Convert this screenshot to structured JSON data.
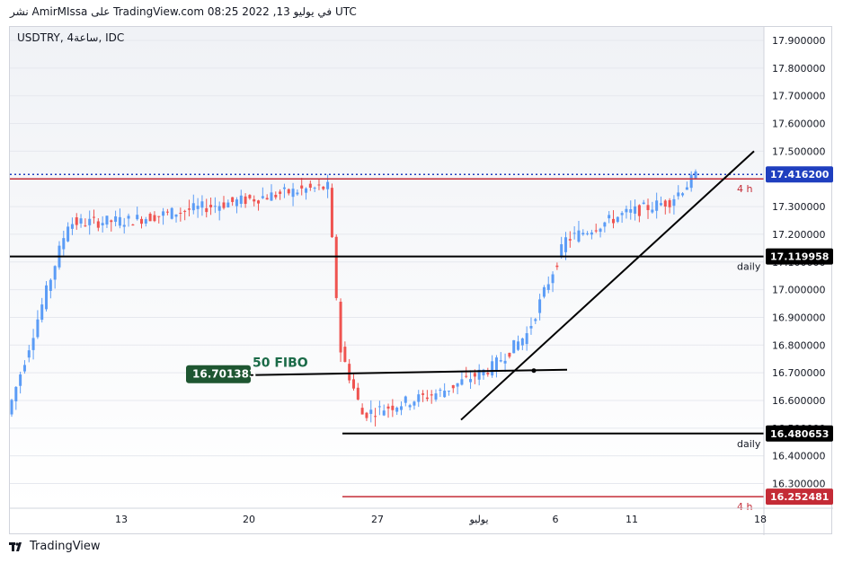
{
  "header": {
    "publish_line": "نشر AmirMIssa على TradingView.com في يوليو 13, 2022 08:25 UTC"
  },
  "symbol_line": "USDTRY, 4ساعة, IDC",
  "footer": {
    "brand": "TradingView"
  },
  "colors": {
    "up": "#5b9cf6",
    "down": "#ef5350",
    "red_level": "#c42b36",
    "black_level": "#000000",
    "fibo_label": "#1e5631",
    "fibo_text": "#1b6b48"
  },
  "chart_data": {
    "type": "candlestick",
    "symbol": "USDTRY",
    "interval": "4ساعة",
    "source": "IDC",
    "ylim": [
      16.22,
      17.96
    ],
    "x_ticks": [
      "13",
      "20",
      "27",
      "يوليو",
      "6",
      "11",
      "18"
    ],
    "y_ticks": [
      "17.900000",
      "17.800000",
      "17.700000",
      "17.600000",
      "17.500000",
      "17.400000",
      "17.300000",
      "17.200000",
      "17.100000",
      "17.000000",
      "16.900000",
      "16.800000",
      "16.700000",
      "16.600000",
      "16.500000",
      "16.400000",
      "16.300000"
    ],
    "last_price": {
      "value": 17.4162,
      "label": "17.416200"
    },
    "levels": [
      {
        "value": 17.4,
        "label": "4 h",
        "price_tag": "",
        "color": "red"
      },
      {
        "value": 17.119958,
        "label": "daily",
        "price_tag": "17.119958",
        "color": "black"
      },
      {
        "value": 16.480653,
        "label": "daily",
        "price_tag": "16.480653",
        "color": "black"
      },
      {
        "value": 16.252481,
        "label": "4 h",
        "price_tag": "16.252481",
        "color": "red"
      }
    ],
    "fibo": {
      "text": "50 FIBO",
      "value": 16.701383,
      "label": "16.701383"
    },
    "trendline": {
      "from": 16.53,
      "to": 17.5
    },
    "segments": [
      {
        "bars": 14,
        "from": 16.55,
        "to": 17.24
      },
      {
        "bars": 14,
        "from": 17.24,
        "to": 17.25
      },
      {
        "bars": 40,
        "from": 17.25,
        "to": 17.36
      },
      {
        "bars": 6,
        "from": 17.36,
        "to": 17.37
      },
      {
        "bars": 3,
        "from": 17.37,
        "to": 16.78
      },
      {
        "bars": 5,
        "from": 16.78,
        "to": 16.55
      },
      {
        "bars": 18,
        "from": 16.55,
        "to": 16.63
      },
      {
        "bars": 12,
        "from": 16.63,
        "to": 16.72
      },
      {
        "bars": 8,
        "from": 16.72,
        "to": 16.84
      },
      {
        "bars": 9,
        "from": 16.84,
        "to": 17.18
      },
      {
        "bars": 13,
        "from": 17.18,
        "to": 17.27
      },
      {
        "bars": 11,
        "from": 17.27,
        "to": 17.32
      },
      {
        "bars": 6,
        "from": 17.32,
        "to": 17.41
      }
    ]
  }
}
